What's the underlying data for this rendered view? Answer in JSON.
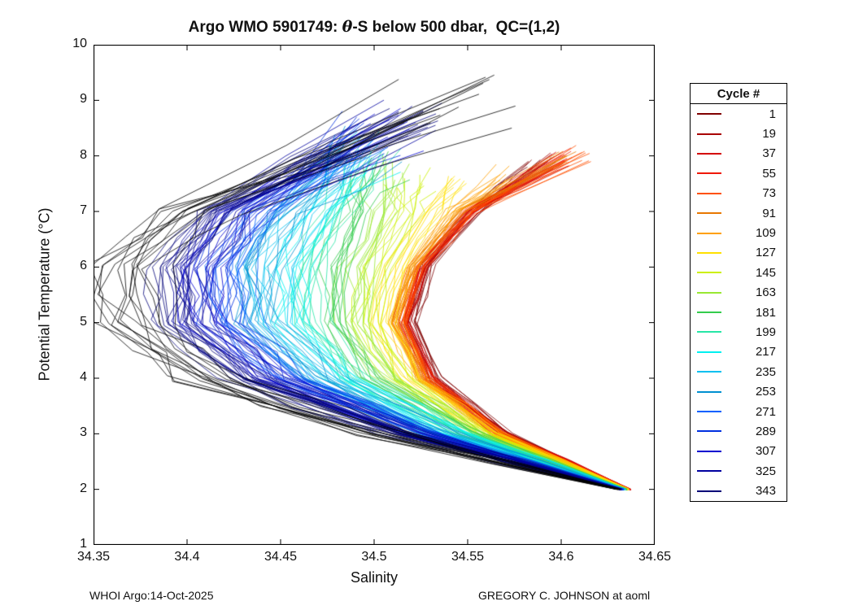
{
  "chart_data": {
    "type": "line",
    "title_prefix": "Argo WMO 5901749: ",
    "title_theta": "θ",
    "title_suffix": "-S below 500 dbar,  QC=(1,2)",
    "xlabel": "Salinity",
    "ylabel": "Potential Temperature (°C)",
    "xlim": [
      34.35,
      34.65
    ],
    "ylim": [
      1,
      10
    ],
    "xticks": [
      34.35,
      34.4,
      34.45,
      34.5,
      34.55,
      34.6,
      34.65
    ],
    "xtick_labels": [
      "34.35",
      "34.4",
      "34.45",
      "34.5",
      "34.55",
      "34.6",
      "34.65"
    ],
    "yticks": [
      1,
      2,
      3,
      4,
      5,
      6,
      7,
      8,
      9,
      10
    ],
    "ytick_labels": [
      "1",
      "2",
      "3",
      "4",
      "5",
      "6",
      "7",
      "8",
      "9",
      "10"
    ],
    "grid": false,
    "legend": {
      "title": "Cycle #",
      "position": "right-outside",
      "entries": [
        {
          "label": "1",
          "color": "#800000"
        },
        {
          "label": "19",
          "color": "#A80000"
        },
        {
          "label": "37",
          "color": "#D40000"
        },
        {
          "label": "55",
          "color": "#F01800"
        },
        {
          "label": "73",
          "color": "#FF5000"
        },
        {
          "label": "91",
          "color": "#E87800"
        },
        {
          "label": "109",
          "color": "#FFA000"
        },
        {
          "label": "127",
          "color": "#FFE000"
        },
        {
          "label": "145",
          "color": "#CCF000"
        },
        {
          "label": "163",
          "color": "#99E832"
        },
        {
          "label": "181",
          "color": "#33CC4C"
        },
        {
          "label": "199",
          "color": "#26E6A6"
        },
        {
          "label": "217",
          "color": "#00F0F0"
        },
        {
          "label": "235",
          "color": "#00C0F0"
        },
        {
          "label": "253",
          "color": "#0090D0"
        },
        {
          "label": "271",
          "color": "#0060FF"
        },
        {
          "label": "289",
          "color": "#0030E0"
        },
        {
          "label": "307",
          "color": "#0000D0"
        },
        {
          "label": "325",
          "color": "#0000A0"
        },
        {
          "label": "343",
          "color": "#000078"
        }
      ]
    },
    "series": [
      {
        "cycle": "1",
        "color": "#800000",
        "spread": 0.003,
        "replicas": 8,
        "top_jitter": 0.15,
        "points": [
          [
            34.637,
            2
          ],
          [
            34.571,
            3
          ],
          [
            34.533,
            4
          ],
          [
            34.52,
            5
          ],
          [
            34.529,
            6
          ],
          [
            34.553,
            7
          ],
          [
            34.585,
            7.8
          ]
        ]
      },
      {
        "cycle": "19",
        "color": "#A80000",
        "spread": 0.003,
        "replicas": 8,
        "top_jitter": 0.15,
        "points": [
          [
            34.637,
            2
          ],
          [
            34.57,
            3
          ],
          [
            34.531,
            4
          ],
          [
            34.518,
            5
          ],
          [
            34.527,
            6
          ],
          [
            34.552,
            7
          ],
          [
            34.595,
            7.9
          ]
        ]
      },
      {
        "cycle": "37",
        "color": "#D40000",
        "spread": 0.003,
        "replicas": 8,
        "top_jitter": 0.15,
        "points": [
          [
            34.637,
            2
          ],
          [
            34.569,
            3
          ],
          [
            34.53,
            4
          ],
          [
            34.516,
            5
          ],
          [
            34.526,
            6
          ],
          [
            34.552,
            7
          ],
          [
            34.6,
            7.95
          ]
        ]
      },
      {
        "cycle": "55",
        "color": "#F01800",
        "spread": 0.003,
        "replicas": 8,
        "top_jitter": 0.15,
        "points": [
          [
            34.637,
            2
          ],
          [
            34.568,
            3
          ],
          [
            34.529,
            4
          ],
          [
            34.515,
            5
          ],
          [
            34.525,
            6
          ],
          [
            34.551,
            7
          ],
          [
            34.605,
            8.0
          ]
        ]
      },
      {
        "cycle": "73",
        "color": "#FF5000",
        "spread": 0.004,
        "replicas": 8,
        "top_jitter": 0.15,
        "points": [
          [
            34.636,
            2
          ],
          [
            34.567,
            3
          ],
          [
            34.528,
            4
          ],
          [
            34.514,
            5
          ],
          [
            34.524,
            6
          ],
          [
            34.551,
            7
          ],
          [
            34.61,
            8.0
          ]
        ]
      },
      {
        "cycle": "91",
        "color": "#E87800",
        "spread": 0.004,
        "replicas": 8,
        "top_jitter": 0.15,
        "points": [
          [
            34.636,
            2
          ],
          [
            34.566,
            3
          ],
          [
            34.527,
            4
          ],
          [
            34.513,
            5
          ],
          [
            34.523,
            6
          ],
          [
            34.549,
            7
          ],
          [
            34.604,
            8.0
          ]
        ]
      },
      {
        "cycle": "109",
        "color": "#FFA000",
        "spread": 0.004,
        "replicas": 9,
        "top_jitter": 0.2,
        "points": [
          [
            34.636,
            2
          ],
          [
            34.565,
            3
          ],
          [
            34.525,
            4
          ],
          [
            34.511,
            5
          ],
          [
            34.52,
            6
          ],
          [
            34.543,
            7
          ],
          [
            34.572,
            7.7
          ]
        ]
      },
      {
        "cycle": "127",
        "color": "#FFE000",
        "spread": 0.006,
        "replicas": 9,
        "top_jitter": 0.2,
        "points": [
          [
            34.636,
            2
          ],
          [
            34.562,
            3
          ],
          [
            34.52,
            4
          ],
          [
            34.505,
            5
          ],
          [
            34.512,
            6
          ],
          [
            34.532,
            7
          ],
          [
            34.545,
            7.5
          ]
        ]
      },
      {
        "cycle": "145",
        "color": "#CCF000",
        "spread": 0.008,
        "replicas": 9,
        "top_jitter": 0.25,
        "points": [
          [
            34.635,
            2
          ],
          [
            34.558,
            3
          ],
          [
            34.513,
            4
          ],
          [
            34.495,
            5
          ],
          [
            34.501,
            6
          ],
          [
            34.517,
            7
          ],
          [
            34.521,
            7.6
          ]
        ]
      },
      {
        "cycle": "163",
        "color": "#99E832",
        "spread": 0.009,
        "replicas": 9,
        "top_jitter": 0.3,
        "points": [
          [
            34.635,
            2
          ],
          [
            34.554,
            3
          ],
          [
            34.506,
            4
          ],
          [
            34.486,
            5
          ],
          [
            34.489,
            6
          ],
          [
            34.503,
            7
          ],
          [
            34.505,
            7.7
          ]
        ]
      },
      {
        "cycle": "181",
        "color": "#33CC4C",
        "spread": 0.009,
        "replicas": 9,
        "top_jitter": 0.3,
        "points": [
          [
            34.635,
            2
          ],
          [
            34.55,
            3
          ],
          [
            34.499,
            4
          ],
          [
            34.477,
            5
          ],
          [
            34.479,
            6
          ],
          [
            34.492,
            7
          ],
          [
            34.499,
            7.8
          ]
        ]
      },
      {
        "cycle": "199",
        "color": "#26E6A6",
        "spread": 0.01,
        "replicas": 9,
        "top_jitter": 0.3,
        "points": [
          [
            34.634,
            2
          ],
          [
            34.546,
            3
          ],
          [
            34.492,
            4
          ],
          [
            34.467,
            5
          ],
          [
            34.468,
            6
          ],
          [
            34.482,
            7
          ],
          [
            34.496,
            7.9
          ]
        ]
      },
      {
        "cycle": "217",
        "color": "#00F0F0",
        "spread": 0.011,
        "replicas": 10,
        "top_jitter": 0.35,
        "points": [
          [
            34.634,
            2
          ],
          [
            34.542,
            3
          ],
          [
            34.484,
            4
          ],
          [
            34.456,
            5
          ],
          [
            34.456,
            6
          ],
          [
            34.472,
            7
          ],
          [
            34.495,
            8.0
          ]
        ]
      },
      {
        "cycle": "235",
        "color": "#00C0F0",
        "spread": 0.011,
        "replicas": 10,
        "top_jitter": 0.35,
        "points": [
          [
            34.634,
            2
          ],
          [
            34.538,
            3
          ],
          [
            34.476,
            4
          ],
          [
            34.446,
            5
          ],
          [
            34.445,
            6
          ],
          [
            34.462,
            7
          ],
          [
            34.494,
            8.1
          ]
        ]
      },
      {
        "cycle": "253",
        "color": "#0090D0",
        "spread": 0.012,
        "replicas": 10,
        "top_jitter": 0.35,
        "points": [
          [
            34.633,
            2
          ],
          [
            34.534,
            3
          ],
          [
            34.468,
            4
          ],
          [
            34.436,
            5
          ],
          [
            34.435,
            6
          ],
          [
            34.452,
            7
          ],
          [
            34.494,
            8.2
          ]
        ]
      },
      {
        "cycle": "271",
        "color": "#0060FF",
        "spread": 0.012,
        "replicas": 10,
        "top_jitter": 0.35,
        "points": [
          [
            34.633,
            2
          ],
          [
            34.53,
            3
          ],
          [
            34.46,
            4
          ],
          [
            34.427,
            5
          ],
          [
            34.425,
            6
          ],
          [
            34.443,
            7
          ],
          [
            34.495,
            8.3
          ]
        ]
      },
      {
        "cycle": "289",
        "color": "#0030E0",
        "spread": 0.013,
        "replicas": 10,
        "top_jitter": 0.4,
        "points": [
          [
            34.633,
            2
          ],
          [
            34.526,
            3
          ],
          [
            34.452,
            4
          ],
          [
            34.418,
            5
          ],
          [
            34.416,
            6
          ],
          [
            34.434,
            7
          ],
          [
            34.498,
            8.4
          ]
        ]
      },
      {
        "cycle": "307",
        "color": "#0000D0",
        "spread": 0.013,
        "replicas": 10,
        "top_jitter": 0.4,
        "points": [
          [
            34.632,
            2
          ],
          [
            34.522,
            3
          ],
          [
            34.445,
            4
          ],
          [
            34.409,
            5
          ],
          [
            34.407,
            6
          ],
          [
            34.427,
            7
          ],
          [
            34.505,
            8.5
          ]
        ]
      },
      {
        "cycle": "325",
        "color": "#0000A0",
        "spread": 0.013,
        "replicas": 10,
        "top_jitter": 0.4,
        "points": [
          [
            34.632,
            2
          ],
          [
            34.518,
            3
          ],
          [
            34.438,
            4
          ],
          [
            34.402,
            5
          ],
          [
            34.4,
            6
          ],
          [
            34.421,
            7
          ],
          [
            34.512,
            8.6
          ]
        ]
      },
      {
        "cycle": "343",
        "color": "#000078",
        "spread": 0.013,
        "replicas": 10,
        "top_jitter": 0.4,
        "points": [
          [
            34.632,
            2
          ],
          [
            34.514,
            3
          ],
          [
            34.431,
            4
          ],
          [
            34.395,
            5
          ],
          [
            34.393,
            6
          ],
          [
            34.416,
            7
          ],
          [
            34.52,
            8.7
          ]
        ]
      },
      {
        "cycle": "unlabeled",
        "color": "#000000",
        "spread": 0.02,
        "replicas": 14,
        "top_jitter": 0.5,
        "points": [
          [
            34.631,
            2
          ],
          [
            34.505,
            3
          ],
          [
            34.415,
            4
          ],
          [
            34.373,
            5
          ],
          [
            34.368,
            6
          ],
          [
            34.405,
            7
          ],
          [
            34.545,
            9.0
          ]
        ]
      }
    ],
    "footer_left": "WHOI Argo:14-Oct-2025",
    "footer_right": "GREGORY C. JOHNSON at aoml"
  }
}
